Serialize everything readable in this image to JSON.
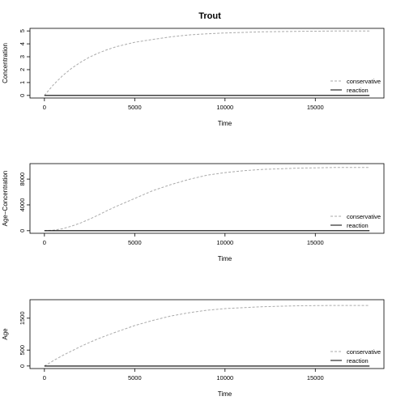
{
  "title": "Trout",
  "colors": {
    "conservative": "#aaaaaa",
    "reaction": "#000000"
  },
  "chart_data": [
    {
      "type": "line",
      "xlabel": "Time",
      "ylabel": "Concentration",
      "xlim": [
        -800,
        18800
      ],
      "ylim": [
        -0.2,
        5.2
      ],
      "xticks": [
        0,
        5000,
        10000,
        15000
      ],
      "yticks": [
        0,
        1,
        2,
        3,
        4,
        5
      ],
      "legend_position": "bottom-right",
      "series": [
        {
          "name": "conservative",
          "style": "dashed",
          "color": "#aaaaaa",
          "x": [
            0,
            500,
            1000,
            1500,
            2000,
            2500,
            3000,
            3500,
            4000,
            5000,
            6000,
            7000,
            8000,
            9000,
            10000,
            12000,
            14000,
            16000,
            18000
          ],
          "y": [
            0,
            0.83,
            1.52,
            2.1,
            2.57,
            2.97,
            3.29,
            3.56,
            3.79,
            4.12,
            4.34,
            4.54,
            4.69,
            4.78,
            4.84,
            4.93,
            4.97,
            4.99,
            5.0
          ]
        },
        {
          "name": "reaction",
          "style": "solid",
          "color": "#000000",
          "x": [
            0,
            18000
          ],
          "y": [
            0,
            0
          ]
        }
      ]
    },
    {
      "type": "line",
      "xlabel": "Time",
      "ylabel": "Age−Concentration",
      "xlim": [
        -800,
        18800
      ],
      "ylim": [
        -400,
        10400
      ],
      "xticks": [
        0,
        5000,
        10000,
        15000
      ],
      "yticks": [
        0,
        4000,
        8000
      ],
      "legend_position": "bottom-right",
      "series": [
        {
          "name": "conservative",
          "style": "dashed",
          "color": "#aaaaaa",
          "x": [
            0,
            500,
            1000,
            1500,
            2000,
            2500,
            3000,
            3500,
            4000,
            5000,
            6000,
            7000,
            8000,
            9000,
            10000,
            11000,
            12000,
            14000,
            16000,
            18000
          ],
          "y": [
            0,
            80,
            300,
            700,
            1200,
            1800,
            2450,
            3150,
            3800,
            5000,
            6200,
            7150,
            7950,
            8600,
            9000,
            9300,
            9500,
            9700,
            9800,
            9800
          ]
        },
        {
          "name": "reaction",
          "style": "solid",
          "color": "#000000",
          "x": [
            0,
            18000
          ],
          "y": [
            0,
            0
          ]
        }
      ]
    },
    {
      "type": "line",
      "xlabel": "Time",
      "ylabel": "Age",
      "xlim": [
        -800,
        18800
      ],
      "ylim": [
        -80,
        2080
      ],
      "xticks": [
        0,
        5000,
        10000,
        15000
      ],
      "yticks": [
        0,
        500,
        1500
      ],
      "legend_position": "bottom-right",
      "series": [
        {
          "name": "conservative",
          "style": "dashed",
          "color": "#aaaaaa",
          "x": [
            0,
            500,
            1000,
            1500,
            2000,
            2500,
            3000,
            3500,
            4000,
            5000,
            6000,
            7000,
            8000,
            9000,
            10000,
            12000,
            14000,
            16000,
            18000
          ],
          "y": [
            0,
            170,
            330,
            470,
            610,
            740,
            860,
            970,
            1070,
            1270,
            1430,
            1570,
            1670,
            1750,
            1800,
            1860,
            1890,
            1900,
            1900
          ]
        },
        {
          "name": "reaction",
          "style": "solid",
          "color": "#000000",
          "x": [
            0,
            18000
          ],
          "y": [
            0,
            0
          ]
        }
      ]
    }
  ]
}
